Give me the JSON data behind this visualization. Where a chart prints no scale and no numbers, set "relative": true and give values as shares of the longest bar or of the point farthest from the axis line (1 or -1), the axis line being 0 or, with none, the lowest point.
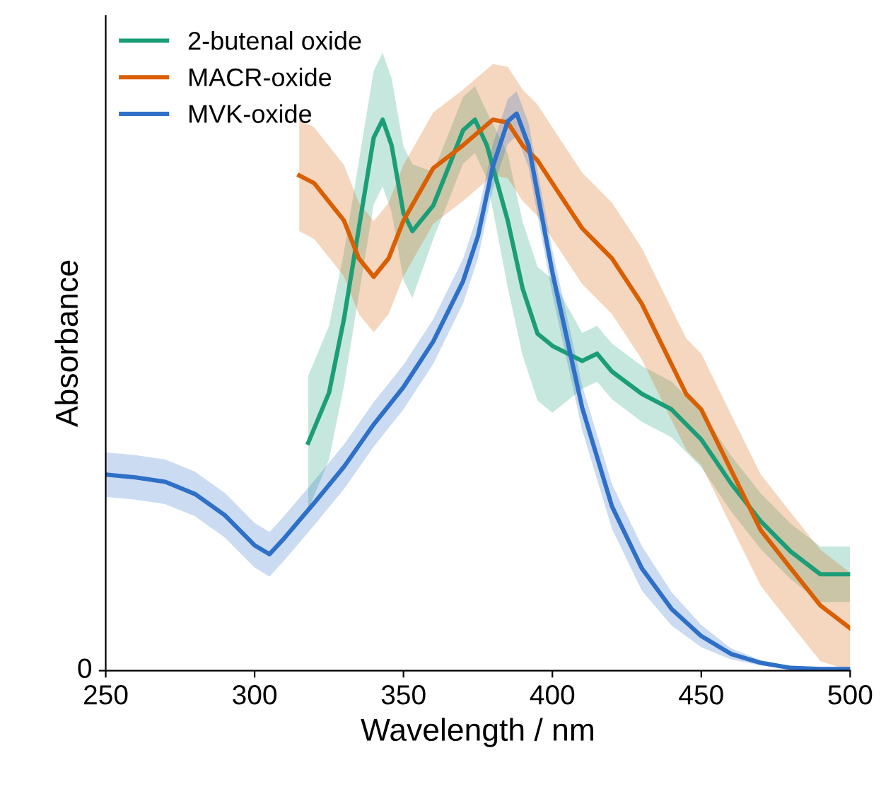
{
  "chart_data": {
    "type": "line",
    "relative": true,
    "xlabel": "Wavelength / nm",
    "ylabel": "Absorbance",
    "xlim": [
      250,
      500
    ],
    "xticks": [
      250,
      300,
      350,
      400,
      450,
      500
    ],
    "annotations": [
      "0"
    ],
    "legend": "top left",
    "grid": false,
    "marker": "none",
    "line_style": "solid",
    "series": [
      {
        "name": "2-butenal oxide",
        "color": "#1b9e77",
        "x": [
          318,
          325,
          330,
          335,
          340,
          343,
          346,
          350,
          353,
          360,
          365,
          370,
          374,
          378,
          385,
          390,
          395,
          400,
          410,
          415,
          420,
          430,
          440,
          450,
          460,
          470,
          480,
          490,
          500
        ],
        "values": [
          0.409,
          0.499,
          0.631,
          0.794,
          0.957,
          0.989,
          0.943,
          0.821,
          0.789,
          0.835,
          0.902,
          0.97,
          0.989,
          0.943,
          0.808,
          0.686,
          0.605,
          0.583,
          0.556,
          0.569,
          0.537,
          0.497,
          0.469,
          0.415,
          0.336,
          0.268,
          0.214,
          0.173,
          0.173
        ],
        "lower": [
          0.289,
          0.379,
          0.511,
          0.674,
          0.837,
          0.869,
          0.823,
          0.701,
          0.669,
          0.775,
          0.842,
          0.91,
          0.929,
          0.883,
          0.688,
          0.566,
          0.485,
          0.463,
          0.506,
          0.519,
          0.487,
          0.447,
          0.419,
          0.365,
          0.286,
          0.218,
          0.164,
          0.123,
          0.123
        ],
        "upper": [
          0.529,
          0.619,
          0.751,
          0.914,
          1.077,
          1.109,
          1.063,
          0.941,
          0.909,
          0.895,
          0.962,
          1.03,
          1.049,
          1.003,
          0.928,
          0.806,
          0.725,
          0.703,
          0.606,
          0.619,
          0.587,
          0.547,
          0.519,
          0.465,
          0.386,
          0.318,
          0.264,
          0.223,
          0.223
        ]
      },
      {
        "name": "MACR-oxide",
        "color": "#d95f02",
        "x": [
          315,
          320,
          330,
          335,
          340,
          345,
          350,
          360,
          370,
          380,
          385,
          390,
          395,
          400,
          410,
          415,
          420,
          430,
          440,
          445,
          450,
          460,
          470,
          480,
          490,
          500
        ],
        "values": [
          0.889,
          0.875,
          0.808,
          0.74,
          0.707,
          0.74,
          0.808,
          0.902,
          0.943,
          0.989,
          0.984,
          0.943,
          0.916,
          0.875,
          0.794,
          0.767,
          0.74,
          0.659,
          0.55,
          0.496,
          0.469,
          0.36,
          0.252,
          0.184,
          0.117,
          0.076
        ],
        "lower": [
          0.789,
          0.775,
          0.708,
          0.64,
          0.607,
          0.64,
          0.708,
          0.802,
          0.843,
          0.889,
          0.884,
          0.843,
          0.816,
          0.775,
          0.694,
          0.667,
          0.64,
          0.559,
          0.45,
          0.396,
          0.369,
          0.26,
          0.152,
          0.084,
          0.017,
          0.0
        ],
        "upper": [
          0.989,
          0.975,
          0.908,
          0.84,
          0.807,
          0.84,
          0.908,
          1.002,
          1.043,
          1.089,
          1.084,
          1.043,
          1.016,
          0.975,
          0.894,
          0.867,
          0.84,
          0.759,
          0.65,
          0.596,
          0.569,
          0.46,
          0.352,
          0.284,
          0.217,
          0.176
        ]
      },
      {
        "name": "MVK-oxide",
        "color": "#2e6fc7",
        "x": [
          250,
          260,
          270,
          280,
          290,
          300,
          305,
          310,
          320,
          330,
          340,
          350,
          360,
          370,
          375,
          380,
          385,
          388,
          392,
          400,
          410,
          420,
          430,
          440,
          450,
          460,
          470,
          480,
          490,
          500
        ],
        "values": [
          0.352,
          0.347,
          0.339,
          0.317,
          0.279,
          0.225,
          0.209,
          0.238,
          0.301,
          0.366,
          0.442,
          0.509,
          0.591,
          0.699,
          0.78,
          0.905,
          0.986,
          1.0,
          0.943,
          0.715,
          0.472,
          0.295,
          0.184,
          0.111,
          0.062,
          0.03,
          0.014,
          0.005,
          0.003,
          0.003
        ],
        "lower": [
          0.312,
          0.307,
          0.299,
          0.277,
          0.239,
          0.185,
          0.169,
          0.198,
          0.261,
          0.326,
          0.402,
          0.469,
          0.551,
          0.659,
          0.74,
          0.865,
          0.946,
          0.96,
          0.903,
          0.675,
          0.432,
          0.255,
          0.144,
          0.081,
          0.042,
          0.02,
          0.009,
          0.003,
          0.002,
          0.002
        ],
        "upper": [
          0.392,
          0.387,
          0.379,
          0.357,
          0.319,
          0.265,
          0.249,
          0.278,
          0.341,
          0.406,
          0.482,
          0.549,
          0.631,
          0.739,
          0.82,
          0.945,
          1.026,
          1.04,
          0.983,
          0.755,
          0.512,
          0.335,
          0.224,
          0.141,
          0.082,
          0.04,
          0.019,
          0.007,
          0.004,
          0.004
        ]
      }
    ]
  }
}
